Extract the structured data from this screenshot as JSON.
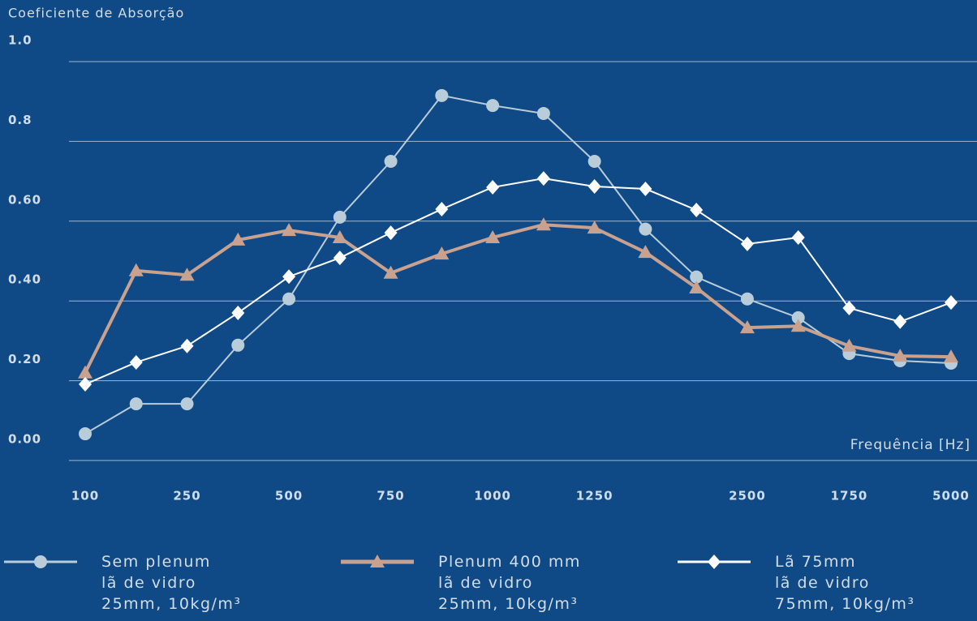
{
  "chart_data": {
    "type": "line",
    "title": "Coeficiente de Absorção",
    "x_label": "Frequência [Hz]",
    "categories": [
      "100",
      null,
      "250",
      null,
      "500",
      null,
      "750",
      null,
      "1000",
      null,
      "1250",
      null,
      null,
      "2500",
      null,
      "1750",
      null,
      "5000"
    ],
    "series": [
      {
        "name": "Sem plenum\nlã de vidro\n25mm, 10kg/m³",
        "color": "#b8ccd9",
        "marker": "circle",
        "width": 2,
        "values": [
          0.067,
          0.142,
          0.142,
          0.289,
          0.405,
          0.61,
          0.75,
          0.915,
          0.89,
          0.87,
          0.75,
          0.58,
          0.46,
          0.405,
          0.358,
          0.268,
          0.25,
          0.244
        ]
      },
      {
        "name": "Plenum 400 mm\nlã de vidro\n25mm, 10kg/m³",
        "color": "#c9a18f",
        "marker": "triangle",
        "width": 4,
        "values": [
          0.22,
          0.476,
          0.465,
          0.553,
          0.577,
          0.559,
          0.47,
          0.518,
          0.559,
          0.591,
          0.583,
          0.522,
          0.433,
          0.333,
          0.337,
          0.287,
          0.262,
          0.26
        ]
      },
      {
        "name": "Lã 75mm\nlã de vidro\n75mm, 10kg/m³",
        "color": "#ffffff",
        "marker": "diamond",
        "width": 2,
        "values": [
          0.191,
          0.246,
          0.287,
          0.37,
          0.461,
          0.508,
          0.571,
          0.63,
          0.685,
          0.707,
          0.687,
          0.681,
          0.628,
          0.543,
          0.559,
          0.382,
          0.348,
          0.396
        ]
      }
    ],
    "ylim": [
      0,
      1
    ],
    "yticks": [
      {
        "value": 0,
        "label": "0.00"
      },
      {
        "value": 0.2,
        "label": "0.20"
      },
      {
        "value": 0.4,
        "label": "0.40"
      },
      {
        "value": 0.6,
        "label": "0.60"
      },
      {
        "value": 0.8,
        "label": "0.8"
      },
      {
        "value": 1,
        "label": "1.0"
      }
    ],
    "grid": true
  }
}
